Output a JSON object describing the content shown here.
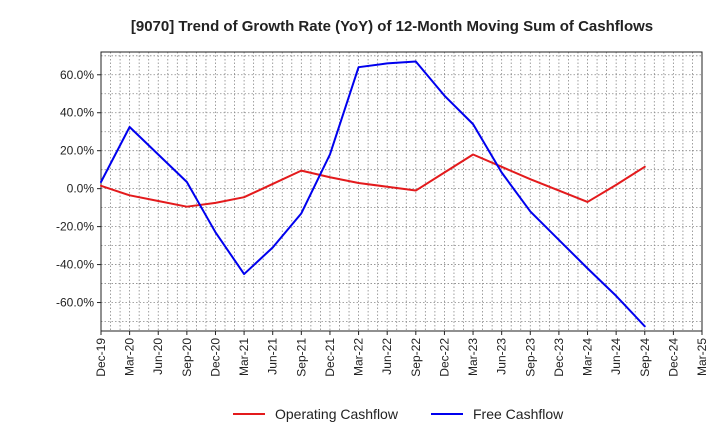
{
  "chart_data": {
    "type": "line",
    "title": "[9070]  Trend of Growth Rate (YoY) of 12-Month Moving Sum of Cashflows",
    "xlabel": "",
    "ylabel": "",
    "x": [
      "Dec-19",
      "Mar-20",
      "Jun-20",
      "Sep-20",
      "Dec-20",
      "Mar-21",
      "Jun-21",
      "Sep-21",
      "Dec-21",
      "Mar-22",
      "Jun-22",
      "Sep-22",
      "Dec-22",
      "Mar-23",
      "Jun-23",
      "Sep-23",
      "Dec-23",
      "Mar-24",
      "Jun-24",
      "Sep-24",
      "Dec-24",
      "Mar-25"
    ],
    "ylim": [
      -75,
      72
    ],
    "y_ticks": [
      60,
      40,
      20,
      0,
      -20,
      -40,
      -60
    ],
    "y_tick_labels": [
      "60.0%",
      "40.0%",
      "20.0%",
      "0.0%",
      "-20.0%",
      "-40.0%",
      "-60.0%"
    ],
    "grid": true,
    "legend_position": "bottom-center",
    "series": [
      {
        "name": "Operating Cashflow",
        "color": "#e31a1c",
        "values": [
          1.5,
          -3.5,
          -6.5,
          -9.5,
          -7.5,
          -4.5,
          2.5,
          9.5,
          6.0,
          3.0,
          1.0,
          -1.0,
          8.5,
          18.0,
          11.5,
          5.0,
          -1.0,
          -7.0,
          2.0,
          11.5,
          null,
          null
        ]
      },
      {
        "name": "Free Cashflow",
        "color": "#0000ee",
        "values": [
          3.5,
          32.5,
          18.0,
          3.5,
          -23.0,
          -45.0,
          -31.0,
          -13.0,
          18.0,
          64.0,
          66.0,
          67.0,
          49.0,
          34.0,
          8.5,
          -12.0,
          -27.0,
          -42.0,
          -56.5,
          -72.5,
          null,
          null
        ]
      }
    ]
  }
}
